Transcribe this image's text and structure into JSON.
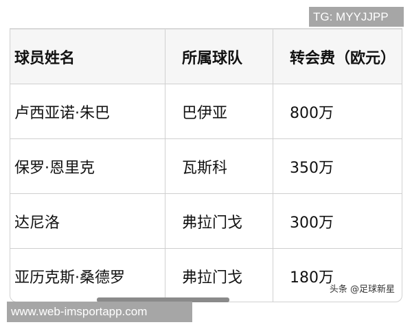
{
  "watermark_top": "TG: MYYJJPP",
  "watermark_bottom": "www.web-imsportapp.com",
  "credit": "头条 @足球新星",
  "table": {
    "headers": [
      "球员姓名",
      "所属球队",
      "转会费（欧元）"
    ],
    "rows": [
      [
        "卢西亚诺·朱巴",
        "巴伊亚",
        "800万"
      ],
      [
        "保罗·恩里克",
        "瓦斯科",
        "350万"
      ],
      [
        "达尼洛",
        "弗拉门戈",
        "300万"
      ],
      [
        "亚历克斯·桑德罗",
        "弗拉门戈",
        "180万"
      ]
    ]
  }
}
